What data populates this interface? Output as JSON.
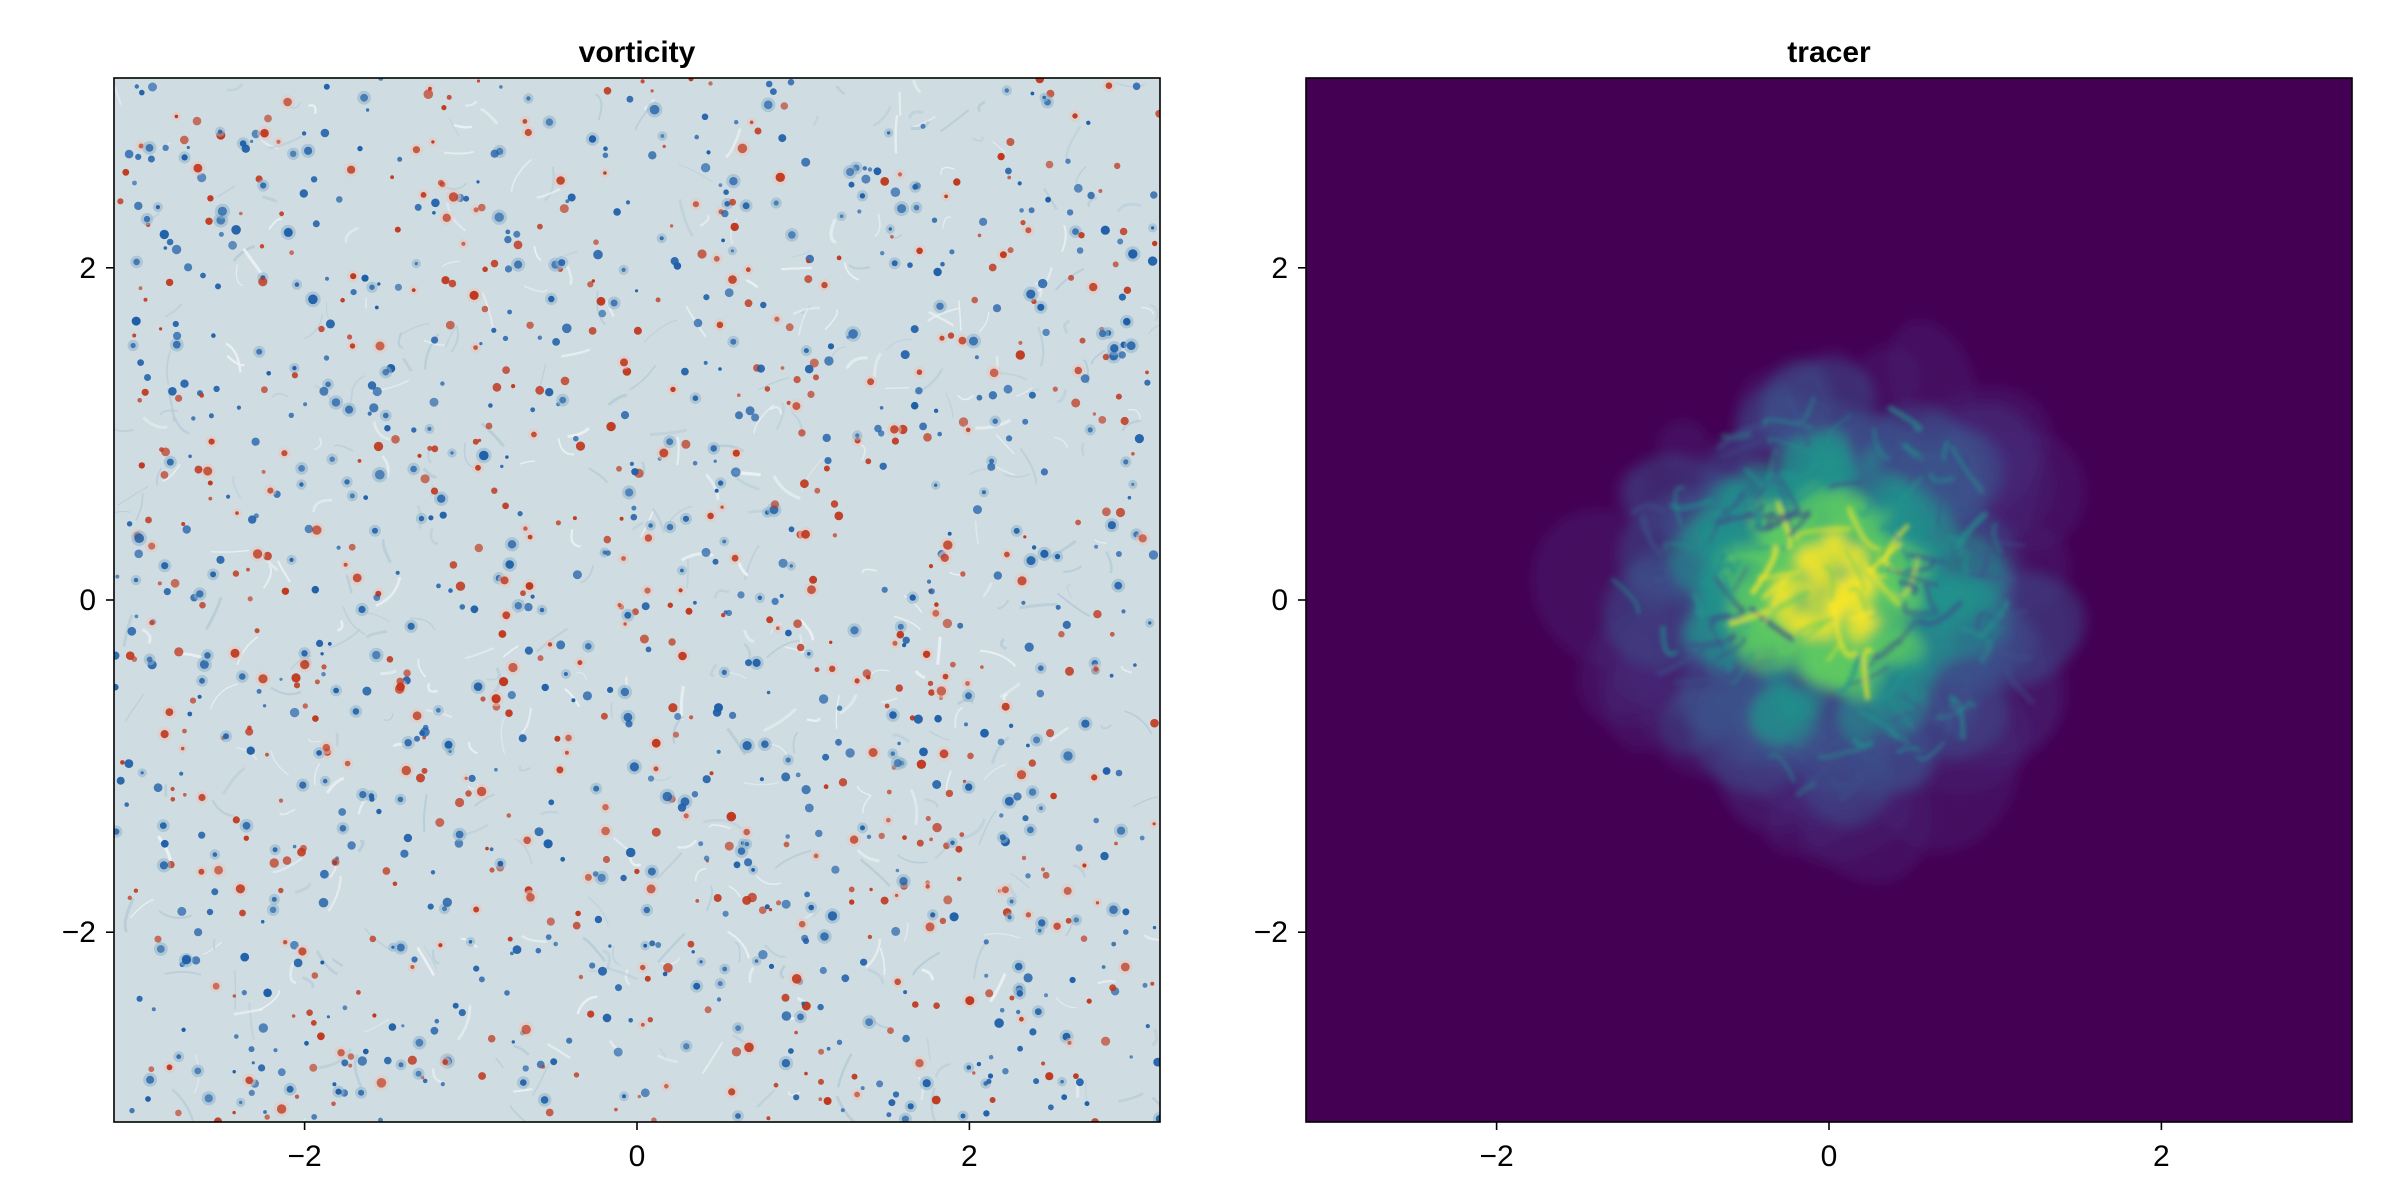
{
  "chart_data": [
    {
      "type": "heatmap",
      "title": "vorticity",
      "xlabel": "",
      "ylabel": "",
      "xlim": [
        -3.14159,
        3.14159
      ],
      "ylim": [
        -3.14159,
        3.14159
      ],
      "xticks": [
        -2,
        0,
        2
      ],
      "yticks": [
        -2,
        0,
        2
      ],
      "xtick_labels": [
        "−2",
        "0",
        "2"
      ],
      "ytick_labels": [
        "−2",
        "0",
        "2"
      ],
      "grid": false,
      "colormap": "balance (blue-white-red)",
      "colors": {
        "background": "#cfdde3",
        "negative": "#1f5fa8",
        "positive": "#c0391f",
        "light": "#eef3f5"
      },
      "field_description_seed": 7
    },
    {
      "type": "heatmap",
      "title": "tracer",
      "xlabel": "",
      "ylabel": "",
      "xlim": [
        -3.14159,
        3.14159
      ],
      "ylim": [
        -3.14159,
        3.14159
      ],
      "xticks": [
        -2,
        0,
        2
      ],
      "yticks": [
        -2,
        0,
        2
      ],
      "xtick_labels": [
        "−2",
        "0",
        "2"
      ],
      "ytick_labels": [
        "−2",
        "0",
        "2"
      ],
      "grid": false,
      "colormap": "viridis",
      "colors": {
        "background": "#440154",
        "low": "#3b528b",
        "mid": "#21918c",
        "high": "#5ec962",
        "peak": "#fde725"
      },
      "blob_center": [
        0.0,
        0.05
      ],
      "blob_radius": 1.3
    }
  ]
}
